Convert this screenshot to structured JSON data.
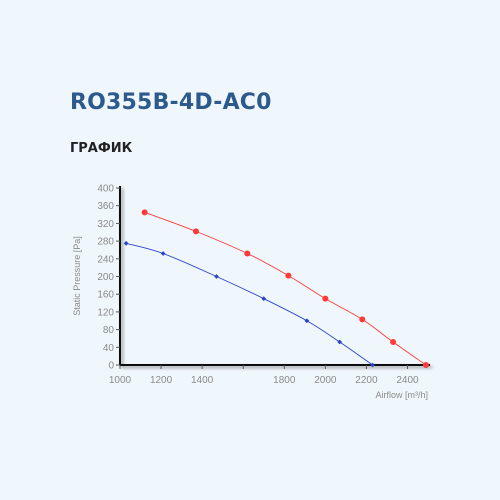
{
  "header": {
    "model": "RO355B-4D-AC0",
    "section": "ГРАФИК"
  },
  "chart_data": {
    "type": "line",
    "xlabel": "Airflow [m³/h]",
    "ylabel": "Static Pressure [Pa]",
    "xlim": [
      1000,
      2500
    ],
    "ylim": [
      0,
      400
    ],
    "x_ticks": [
      1000,
      1200,
      1400,
      1600,
      1800,
      2000,
      2200,
      2400
    ],
    "x_tick_labels": [
      "1000",
      "1200",
      "1400",
      "",
      "1800",
      "2000",
      "2200",
      "2400"
    ],
    "y_ticks": [
      0,
      40,
      80,
      120,
      160,
      200,
      240,
      280,
      320,
      360,
      400
    ],
    "grid": false,
    "series": [
      {
        "color": "#ff3a3a",
        "marker": "circle",
        "x": [
          1120,
          1370,
          1620,
          1820,
          2000,
          2180,
          2330,
          2490
        ],
        "y": [
          345,
          302,
          252,
          202,
          150,
          103,
          52,
          0
        ]
      },
      {
        "color": "#2a45c8",
        "marker": "diamond",
        "x": [
          1030,
          1210,
          1470,
          1700,
          1910,
          2070,
          2230
        ],
        "y": [
          275,
          252,
          200,
          150,
          100,
          52,
          0
        ]
      }
    ]
  }
}
